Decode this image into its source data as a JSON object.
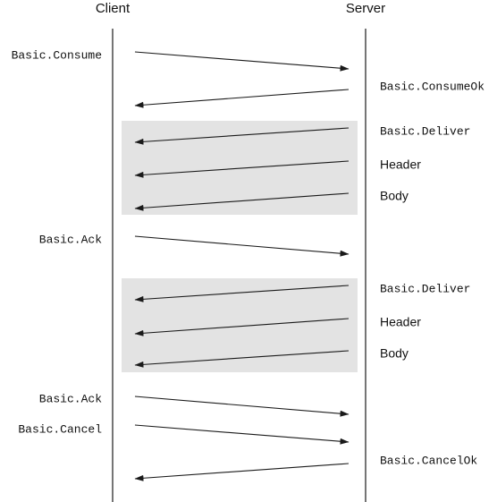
{
  "participants": {
    "client": "Client",
    "server": "Server"
  },
  "messages": [
    {
      "direction": "client-to-server",
      "label": "Basic.Consume",
      "font": "mono"
    },
    {
      "direction": "server-to-client",
      "label": "Basic.ConsumeOk",
      "font": "mono"
    },
    {
      "direction": "server-to-client",
      "label": "Basic.Deliver",
      "font": "mono"
    },
    {
      "direction": "server-to-client",
      "label": "Header",
      "font": "sans"
    },
    {
      "direction": "server-to-client",
      "label": "Body",
      "font": "sans"
    },
    {
      "direction": "client-to-server",
      "label": "Basic.Ack",
      "font": "mono"
    },
    {
      "direction": "server-to-client",
      "label": "Basic.Deliver",
      "font": "mono"
    },
    {
      "direction": "server-to-client",
      "label": "Header",
      "font": "sans"
    },
    {
      "direction": "server-to-client",
      "label": "Body",
      "font": "sans"
    },
    {
      "direction": "client-to-server",
      "label": "Basic.Ack",
      "font": "mono"
    },
    {
      "direction": "client-to-server",
      "label": "Basic.Cancel",
      "font": "mono"
    },
    {
      "direction": "server-to-client",
      "label": "Basic.CancelOk",
      "font": "mono"
    }
  ],
  "delivery_groups": [
    {
      "messages": [
        2,
        3,
        4
      ]
    },
    {
      "messages": [
        6,
        7,
        8
      ]
    }
  ],
  "colors": {
    "group_fill": "#e3e3e3",
    "line": "#1a1a1a"
  }
}
